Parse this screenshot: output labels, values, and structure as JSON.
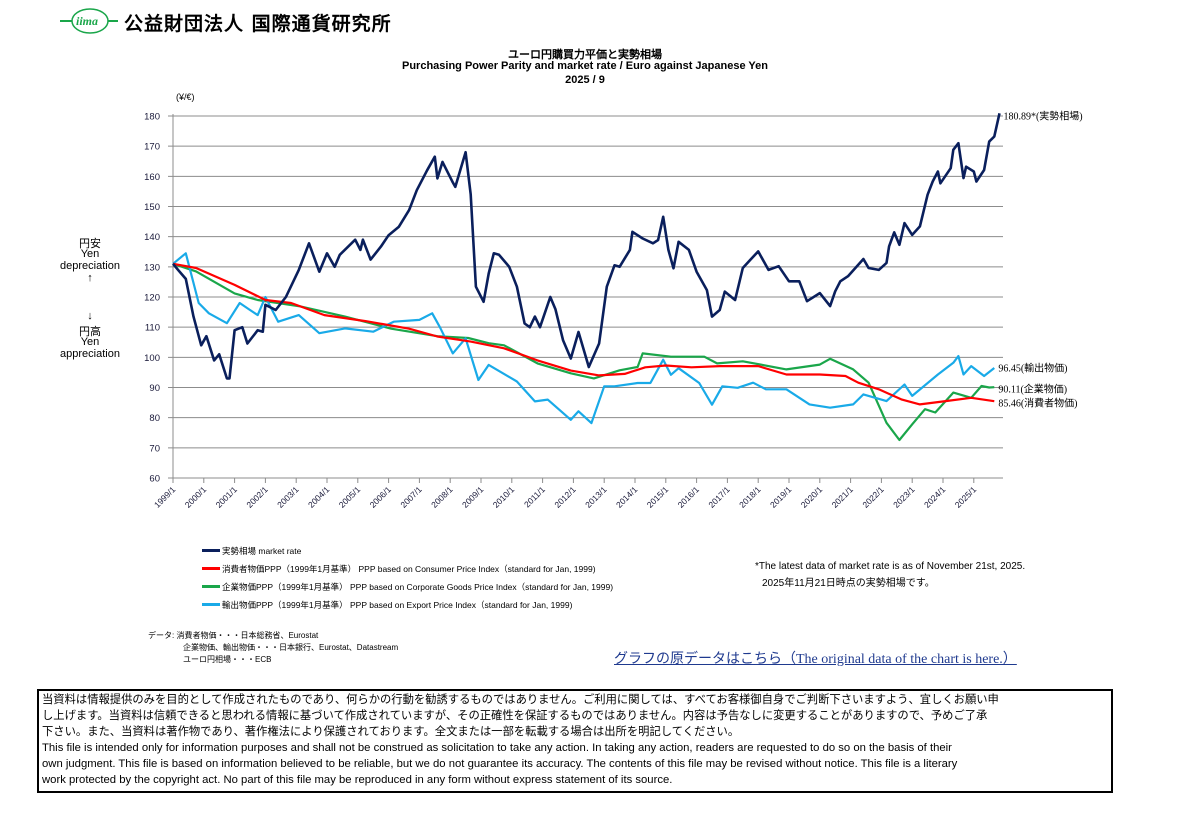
{
  "header": {
    "logo_text": "iima",
    "org_name": "公益財団法人  国際通貨研究所"
  },
  "titles": {
    "jp": "ユーロ円購買力平価と実勢相場",
    "en": "Purchasing Power Parity and market rate / Euro against Japanese Yen",
    "date": "2025 / 9"
  },
  "side_labels": {
    "up_jp": "円安",
    "up_en1": "Yen",
    "up_en2": "depreciation",
    "up_arrow": "↑",
    "down_arrow": "↓",
    "down_jp": "円高",
    "down_en1": "Yen",
    "down_en2": "appreciation"
  },
  "chart_data": {
    "type": "line",
    "title": "ユーロ円購買力平価と実勢相場 / Purchasing Power Parity and market rate / Euro against Japanese Yen",
    "ylabel": "(¥/€)",
    "ylim": [
      60,
      180
    ],
    "yticks": [
      "180",
      "170",
      "160",
      "150",
      "140",
      "130",
      "120",
      "110",
      "100",
      "90",
      "80",
      "70",
      "60"
    ],
    "xlim": [
      "1999-01",
      "2025-11"
    ],
    "xticks": [
      "1999/1",
      "2000/1",
      "2001/1",
      "2002/1",
      "2003/1",
      "2004/1",
      "2005/1",
      "2006/1",
      "2007/1",
      "2008/1",
      "2009/1",
      "2010/1",
      "2011/1",
      "2012/1",
      "2013/1",
      "2014/1",
      "2015/1",
      "2016/1",
      "2017/1",
      "2018/1",
      "2019/1",
      "2020/1",
      "2021/1",
      "2022/1",
      "2023/1",
      "2024/1",
      "2025/1"
    ],
    "grid": true,
    "series": [
      {
        "name": "実勢相場  market rate",
        "color": "#0a1f5c",
        "end_label": "180.89*(実勢相場)",
        "points": [
          [
            "1999-01",
            131
          ],
          [
            "1999-03",
            129
          ],
          [
            "1999-06",
            126
          ],
          [
            "1999-09",
            113.5
          ],
          [
            "1999-12",
            104
          ],
          [
            "2000-02",
            107
          ],
          [
            "2000-05",
            99
          ],
          [
            "2000-07",
            101
          ],
          [
            "2000-10",
            93
          ],
          [
            "2000-11",
            93
          ],
          [
            "2001-01",
            109
          ],
          [
            "2001-04",
            110
          ],
          [
            "2001-06",
            104.6
          ],
          [
            "2001-10",
            109
          ],
          [
            "2001-12",
            108.5
          ],
          [
            "2002-01",
            117.4
          ],
          [
            "2002-05",
            115.7
          ],
          [
            "2002-09",
            120
          ],
          [
            "2003-02",
            129
          ],
          [
            "2003-06",
            137.8
          ],
          [
            "2003-10",
            128.4
          ],
          [
            "2004-01",
            134.5
          ],
          [
            "2004-04",
            130
          ],
          [
            "2004-06",
            134
          ],
          [
            "2004-12",
            139
          ],
          [
            "2005-02",
            135.6
          ],
          [
            "2005-03",
            139
          ],
          [
            "2005-06",
            132.4
          ],
          [
            "2005-10",
            136.7
          ],
          [
            "2006-01",
            140.5
          ],
          [
            "2006-05",
            143.3
          ],
          [
            "2006-09",
            148.8
          ],
          [
            "2006-12",
            155.4
          ],
          [
            "2007-04",
            162
          ],
          [
            "2007-07",
            166.5
          ],
          [
            "2007-08",
            159.3
          ],
          [
            "2007-10",
            164.8
          ],
          [
            "2008-02",
            158
          ],
          [
            "2008-03",
            156.5
          ],
          [
            "2008-07",
            168
          ],
          [
            "2008-09",
            154
          ],
          [
            "2008-11",
            123.4
          ],
          [
            "2009-02",
            118.4
          ],
          [
            "2009-04",
            127.8
          ],
          [
            "2009-06",
            134.5
          ],
          [
            "2009-08",
            134
          ],
          [
            "2009-12",
            130
          ],
          [
            "2010-03",
            123.4
          ],
          [
            "2010-06",
            111.2
          ],
          [
            "2010-08",
            110
          ],
          [
            "2010-10",
            113.5
          ],
          [
            "2010-12",
            110
          ],
          [
            "2011-04",
            120
          ],
          [
            "2011-06",
            116
          ],
          [
            "2011-09",
            105.6
          ],
          [
            "2011-12",
            99.6
          ],
          [
            "2012-03",
            108.4
          ],
          [
            "2012-07",
            96.8
          ],
          [
            "2012-11",
            104.6
          ],
          [
            "2013-02",
            123.4
          ],
          [
            "2013-05",
            130.5
          ],
          [
            "2013-07",
            130
          ],
          [
            "2013-11",
            135.6
          ],
          [
            "2013-12",
            141.6
          ],
          [
            "2014-04",
            139.4
          ],
          [
            "2014-08",
            137.8
          ],
          [
            "2014-10",
            138.9
          ],
          [
            "2014-12",
            146.6
          ],
          [
            "2015-02",
            135.6
          ],
          [
            "2015-04",
            129.5
          ],
          [
            "2015-06",
            138.3
          ],
          [
            "2015-10",
            135.6
          ],
          [
            "2016-01",
            128.4
          ],
          [
            "2016-05",
            122.3
          ],
          [
            "2016-07",
            113.5
          ],
          [
            "2016-10",
            115.7
          ],
          [
            "2016-12",
            121.8
          ],
          [
            "2017-04",
            119
          ],
          [
            "2017-07",
            129.6
          ],
          [
            "2017-10",
            132.4
          ],
          [
            "2018-01",
            135.1
          ],
          [
            "2018-05",
            129
          ],
          [
            "2018-09",
            130.2
          ],
          [
            "2019-01",
            125.2
          ],
          [
            "2019-05",
            125.2
          ],
          [
            "2019-08",
            118.6
          ],
          [
            "2020-01",
            121.3
          ],
          [
            "2020-05",
            117
          ],
          [
            "2020-07",
            121.9
          ],
          [
            "2020-09",
            125.2
          ],
          [
            "2020-12",
            126.9
          ],
          [
            "2021-06",
            132.6
          ],
          [
            "2021-08",
            129.6
          ],
          [
            "2021-12",
            129
          ],
          [
            "2022-03",
            131.3
          ],
          [
            "2022-04",
            136.8
          ],
          [
            "2022-06",
            141.4
          ],
          [
            "2022-08",
            137.3
          ],
          [
            "2022-10",
            144.5
          ],
          [
            "2023-01",
            140.6
          ],
          [
            "2023-04",
            143.4
          ],
          [
            "2023-07",
            153.9
          ],
          [
            "2023-09",
            158.3
          ],
          [
            "2023-11",
            161.6
          ],
          [
            "2023-12",
            157.7
          ],
          [
            "2024-04",
            162.7
          ],
          [
            "2024-05",
            168.8
          ],
          [
            "2024-07",
            171
          ],
          [
            "2024-09",
            159.4
          ],
          [
            "2024-10",
            163.2
          ],
          [
            "2025-01",
            161.6
          ],
          [
            "2025-02",
            158.3
          ],
          [
            "2025-05",
            162.1
          ],
          [
            "2025-07",
            171.5
          ],
          [
            "2025-09",
            173.2
          ],
          [
            "2025-11",
            180.89
          ]
        ]
      },
      {
        "name": "消費者物価PPP（1999年1月基準）  PPP based on Consumer Price Index（standard for Jan, 1999)",
        "color": "#ff0000",
        "end_label": "85.46(消費者物価)",
        "points": [
          [
            "1999-01",
            131
          ],
          [
            "1999-10",
            129.6
          ],
          [
            "2001-01",
            124
          ],
          [
            "2002-01",
            119
          ],
          [
            "2002-11",
            118
          ],
          [
            "2003-12",
            114
          ],
          [
            "2005-04",
            112
          ],
          [
            "2006-09",
            109.5
          ],
          [
            "2007-08",
            106.9
          ],
          [
            "2008-09",
            105.2
          ],
          [
            "2009-10",
            103
          ],
          [
            "2010-11",
            99
          ],
          [
            "2011-12",
            95.6
          ],
          [
            "2012-11",
            94
          ],
          [
            "2013-09",
            94.5
          ],
          [
            "2014-05",
            96.7
          ],
          [
            "2015-01",
            97.3
          ],
          [
            "2015-11",
            96.7
          ],
          [
            "2016-10",
            97.1
          ],
          [
            "2018-01",
            97.1
          ],
          [
            "2018-12",
            94.3
          ],
          [
            "2020-01",
            94.3
          ],
          [
            "2020-11",
            93.8
          ],
          [
            "2021-04",
            91.6
          ],
          [
            "2021-12",
            89.4
          ],
          [
            "2022-09",
            86
          ],
          [
            "2023-04",
            84.4
          ],
          [
            "2024-02",
            85.5
          ],
          [
            "2024-12",
            86.6
          ],
          [
            "2025-09",
            85.46
          ]
        ]
      },
      {
        "name": "企業物価PPP（1999年1月基準）  PPP based on Corporate Goods Price Index（standard for Jan, 1999)",
        "color": "#1aa64a",
        "end_label": "90.11(企業物価)",
        "points": [
          [
            "1999-01",
            131
          ],
          [
            "1999-10",
            128.5
          ],
          [
            "2001-01",
            121.2
          ],
          [
            "2001-10",
            119
          ],
          [
            "2003-02",
            117
          ],
          [
            "2004-08",
            113.5
          ],
          [
            "2006-02",
            109.5
          ],
          [
            "2007-08",
            107
          ],
          [
            "2008-08",
            106.4
          ],
          [
            "2009-04",
            104.7
          ],
          [
            "2009-10",
            104
          ],
          [
            "2010-11",
            98
          ],
          [
            "2011-12",
            94.7
          ],
          [
            "2012-09",
            93
          ],
          [
            "2013-07",
            95.7
          ],
          [
            "2014-02",
            96.8
          ],
          [
            "2014-04",
            101.3
          ],
          [
            "2015-03",
            100.2
          ],
          [
            "2016-04",
            100.2
          ],
          [
            "2016-09",
            98
          ],
          [
            "2017-07",
            98.7
          ],
          [
            "2018-12",
            96
          ],
          [
            "2020-01",
            97.6
          ],
          [
            "2020-05",
            99.5
          ],
          [
            "2021-02",
            96
          ],
          [
            "2021-08",
            91.6
          ],
          [
            "2022-03",
            78.3
          ],
          [
            "2022-08",
            72.6
          ],
          [
            "2023-01",
            77.8
          ],
          [
            "2023-06",
            82.8
          ],
          [
            "2023-10",
            81.7
          ],
          [
            "2024-05",
            88.3
          ],
          [
            "2024-12",
            86.6
          ],
          [
            "2025-04",
            90.5
          ],
          [
            "2025-07",
            90
          ],
          [
            "2025-09",
            90.11
          ]
        ]
      },
      {
        "name": "輸出物価PPP（1999年1月基準）  PPP based on Export Price Index（standard for Jan, 1999)",
        "color": "#19aae8",
        "end_label": "96.45(輸出物価)",
        "points": [
          [
            "1999-01",
            131
          ],
          [
            "1999-06",
            134.5
          ],
          [
            "1999-11",
            118
          ],
          [
            "2000-03",
            114.6
          ],
          [
            "2000-10",
            111.3
          ],
          [
            "2001-03",
            118
          ],
          [
            "2001-07",
            115.7
          ],
          [
            "2001-10",
            114
          ],
          [
            "2002-01",
            120
          ],
          [
            "2002-06",
            111.8
          ],
          [
            "2003-02",
            114
          ],
          [
            "2003-10",
            108
          ],
          [
            "2004-08",
            109.6
          ],
          [
            "2005-07",
            108.5
          ],
          [
            "2006-03",
            111.8
          ],
          [
            "2007-01",
            112.4
          ],
          [
            "2007-06",
            114.6
          ],
          [
            "2007-09",
            110
          ],
          [
            "2008-02",
            101.3
          ],
          [
            "2008-07",
            106.3
          ],
          [
            "2008-12",
            92.5
          ],
          [
            "2009-04",
            97.5
          ],
          [
            "2010-03",
            92
          ],
          [
            "2010-10",
            85.4
          ],
          [
            "2011-03",
            86
          ],
          [
            "2011-12",
            79.3
          ],
          [
            "2012-03",
            82.1
          ],
          [
            "2012-08",
            78.2
          ],
          [
            "2013-01",
            90.4
          ],
          [
            "2013-05",
            90.4
          ],
          [
            "2014-02",
            91.5
          ],
          [
            "2014-07",
            91.5
          ],
          [
            "2014-12",
            99.2
          ],
          [
            "2015-03",
            94.2
          ],
          [
            "2015-06",
            96.4
          ],
          [
            "2016-02",
            91.5
          ],
          [
            "2016-07",
            84.3
          ],
          [
            "2016-11",
            90.4
          ],
          [
            "2017-05",
            89.9
          ],
          [
            "2017-11",
            91.6
          ],
          [
            "2018-04",
            89.4
          ],
          [
            "2018-12",
            89.4
          ],
          [
            "2019-09",
            84.4
          ],
          [
            "2020-05",
            83.3
          ],
          [
            "2021-02",
            84.4
          ],
          [
            "2021-06",
            87.7
          ],
          [
            "2022-03",
            85.5
          ],
          [
            "2022-10",
            91
          ],
          [
            "2023-01",
            87.2
          ],
          [
            "2023-11",
            94.3
          ],
          [
            "2024-05",
            98.2
          ],
          [
            "2024-07",
            100.4
          ],
          [
            "2024-09",
            94.3
          ],
          [
            "2024-12",
            97.1
          ],
          [
            "2025-05",
            93.8
          ],
          [
            "2025-09",
            96.45
          ]
        ]
      }
    ]
  },
  "legend": {
    "items": [
      {
        "label": "実勢相場  market rate",
        "color": "#0a1f5c"
      },
      {
        "label": "消費者物価PPP（1999年1月基準）  PPP based on Consumer Price Index（standard for Jan, 1999)",
        "color": "#ff0000"
      },
      {
        "label": "企業物価PPP（1999年1月基準）  PPP based on Corporate Goods Price Index（standard for Jan, 1999)",
        "color": "#1aa64a"
      },
      {
        "label": "輸出物価PPP（1999年1月基準）  PPP based on Export Price Index（standard for Jan, 1999)",
        "color": "#19aae8"
      }
    ]
  },
  "note": {
    "en": "*The latest data of market rate is as of November 21st, 2025.",
    "jp": "2025年11月21日時点の実勢相場です。"
  },
  "sources": {
    "line1": "データ: 消費者物価・・・日本総務省、Eurostat",
    "line2": "企業物価、輸出物価・・・日本銀行、Eurostat、Datastream",
    "line3": "ユーロ円相場・・・ECB"
  },
  "link_text": "グラフの原データはこちら（The original data of the chart is here.）",
  "disclaimer": [
    "当資料は情報提供のみを目的として作成されたものであり、何らかの行動を勧誘するものではありません。ご利用に関しては、すべてお客様御自身でご判断下さいますよう、宜しくお願い申",
    "し上げます。当資料は信頼できると思われる情報に基づいて作成されていますが、その正確性を保証するものではありません。内容は予告なしに変更することがありますので、予めご了承",
    "下さい。また、当資料は著作物であり、著作権法により保護されております。全文または一部を転載する場合は出所を明記してください。",
    "This file is intended only for information purposes and shall not be construed as solicitation to take any action. In taking any action, readers are requested to do so on the basis of their",
    "own judgment. This file is based on information believed to be reliable, but we do not guarantee its accuracy. The contents of this file may be revised without notice. This file is a literary",
    "work protected by the copyright act. No part of this file may be reproduced in any form without express statement of its source."
  ]
}
